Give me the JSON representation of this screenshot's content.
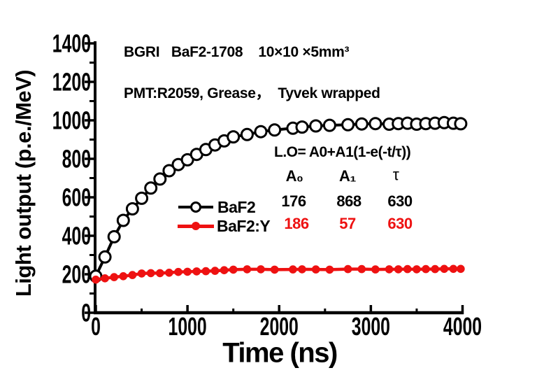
{
  "figure": {
    "background": "#ffffff",
    "black": "#000000",
    "accent_red": "#ee1111"
  },
  "annotations": {
    "line1": "BGRI   BaF2-1708    10×10 ×5mm³",
    "line2": "PMT:R2059, Grease，  Tyvek wrapped"
  },
  "fit": {
    "formula": "L.O= A0+A1(1-e(-t/τ))",
    "col_headers": [
      "A₀",
      "A₁",
      "τ"
    ],
    "rows": [
      {
        "label": "BaF2",
        "A0": "176",
        "A1": "868",
        "tau": "630",
        "color": "#000000"
      },
      {
        "label": "BaF2:Y",
        "A0": "186",
        "A1": "57",
        "tau": "630",
        "color": "#ee1111"
      }
    ]
  },
  "legend": {
    "entries": [
      {
        "label": "BaF2",
        "marker": "open-circle",
        "color": "#000000"
      },
      {
        "label": "BaF2:Y",
        "marker": "filled-circle",
        "color": "#ee1111"
      }
    ]
  },
  "chart_data": {
    "type": "line",
    "title": "",
    "xlabel": "Time (ns)",
    "ylabel": "Light output (p.e./MeV)",
    "xlim": [
      0,
      4000
    ],
    "ylim": [
      0,
      1400
    ],
    "x_major_ticks": [
      0,
      1000,
      2000,
      3000,
      4000
    ],
    "x_minor_step": 500,
    "y_major_ticks": [
      0,
      200,
      400,
      600,
      800,
      1000,
      1200,
      1400
    ],
    "y_minor_step": 100,
    "grid": false,
    "legend_position": "center-left",
    "x": [
      0,
      100,
      200,
      300,
      400,
      500,
      600,
      700,
      800,
      900,
      1000,
      1100,
      1200,
      1300,
      1400,
      1500,
      1650,
      1800,
      1950,
      2150,
      2250,
      2400,
      2550,
      2750,
      2900,
      3050,
      3200,
      3300,
      3400,
      3500,
      3600,
      3700,
      3800,
      3900,
      3980
    ],
    "series": [
      {
        "name": "BaF2",
        "marker": "open-circle",
        "color": "#000000",
        "values": [
          190,
          290,
          395,
          480,
          540,
          595,
          648,
          695,
          738,
          770,
          795,
          823,
          848,
          872,
          893,
          914,
          926,
          941,
          950,
          959,
          965,
          971,
          974,
          977,
          981,
          983,
          980,
          983,
          985,
          980,
          983,
          985,
          988,
          985,
          982
        ]
      },
      {
        "name": "BaF2:Y",
        "marker": "filled-circle",
        "color": "#ee1111",
        "values": [
          172,
          179,
          185,
          190,
          196,
          204,
          206,
          206,
          208,
          212,
          213,
          215,
          216,
          218,
          221,
          224,
          226,
          226,
          224,
          225,
          226,
          225,
          224,
          227,
          227,
          225,
          226,
          226,
          227,
          226,
          227,
          227,
          228,
          228,
          228
        ]
      }
    ]
  }
}
